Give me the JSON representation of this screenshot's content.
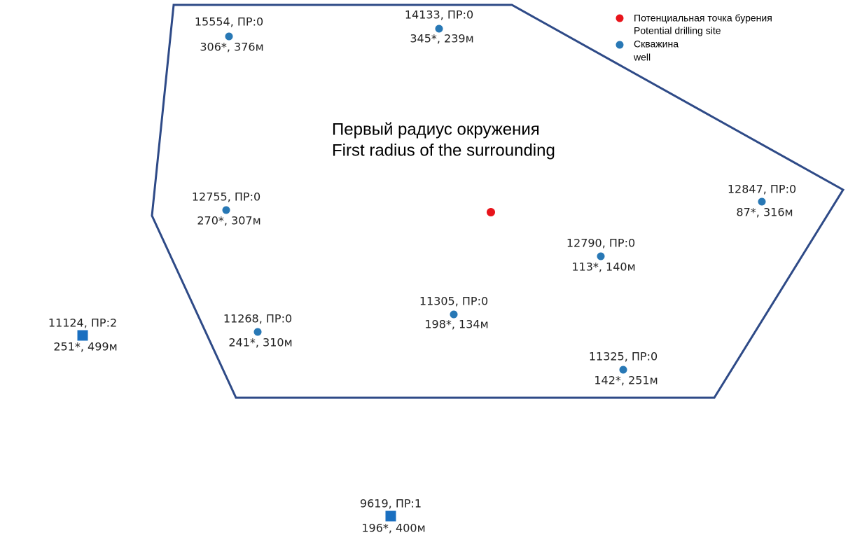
{
  "region": {
    "title_lines": [
      "Первый радиус окружения",
      "First radius of the surrounding"
    ]
  },
  "legend": [
    {
      "lines": [
        "Потенциальная точка бурения",
        "Potential drilling site"
      ]
    },
    {
      "lines": [
        "Скважина",
        "well"
      ]
    }
  ],
  "wells": [
    {
      "label": "15554, ПР:0",
      "detail": "306*, 376м"
    },
    {
      "label": "14133, ПР:0",
      "detail": "345*, 239м"
    },
    {
      "label": "12755, ПР:0",
      "detail": "270*, 307м"
    },
    {
      "label": "12847, ПР:0",
      "detail": "87*, 316м"
    },
    {
      "label": "12790, ПР:0",
      "detail": "113*, 140м"
    },
    {
      "label": "11305, ПР:0",
      "detail": "198*, 134м"
    },
    {
      "label": "11268, ПР:0",
      "detail": "241*, 310м"
    },
    {
      "label": "11325, ПР:0",
      "detail": "142*, 251м"
    },
    {
      "label": "11124, ПР:2",
      "detail": "251*, 499м"
    },
    {
      "label": "9619, ПР:1",
      "detail": "196*, 400м"
    }
  ]
}
